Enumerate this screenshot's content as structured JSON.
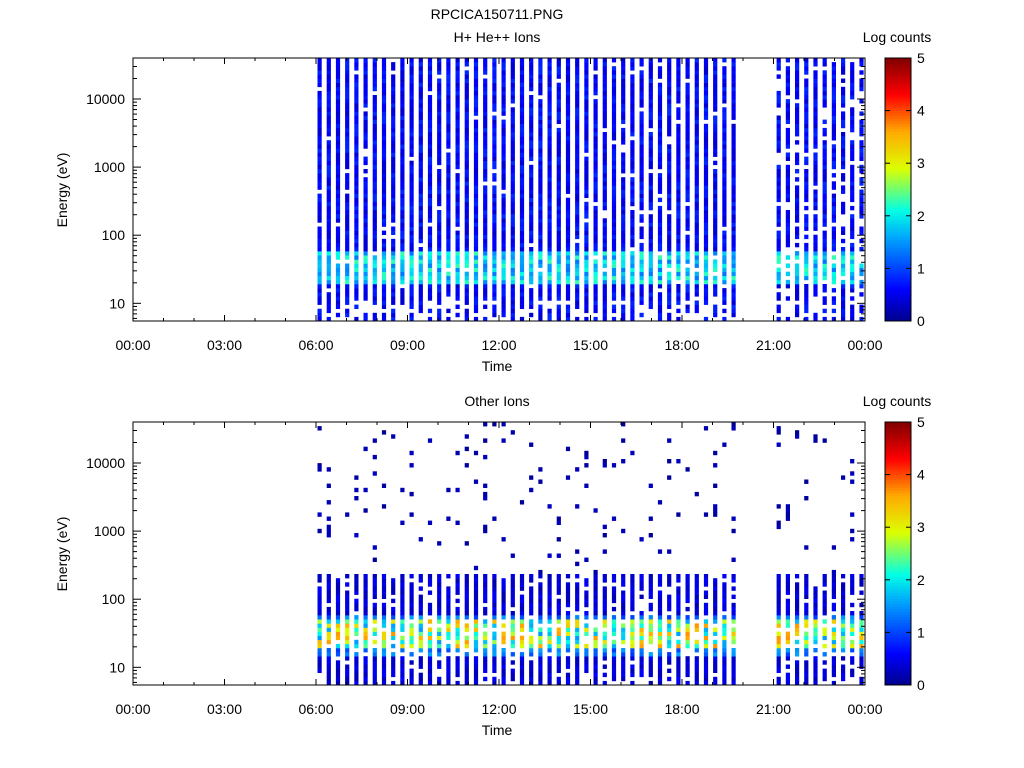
{
  "page_title": "RPCICA150711.PNG",
  "chart_data": [
    {
      "type": "heatmap",
      "title": "H+ He++ Ions",
      "xlabel": "Time",
      "ylabel": "Energy (eV)",
      "yscale": "log",
      "ylim": [
        5.5,
        40000
      ],
      "xlim": [
        "00:00",
        "24:00"
      ],
      "x_ticks": [
        "00:00",
        "03:00",
        "06:00",
        "09:00",
        "12:00",
        "15:00",
        "18:00",
        "21:00",
        "00:00"
      ],
      "y_ticks": [
        10,
        100,
        1000,
        10000
      ],
      "y_tick_labels": [
        "10",
        "100",
        "1000",
        "10000"
      ],
      "colorbar": {
        "label": "Log counts",
        "range": [
          0,
          5
        ],
        "ticks": [
          "0",
          "1",
          "2",
          "3",
          "4",
          "5"
        ]
      },
      "data_coverage_hours": [
        [
          6.05,
          19.85
        ],
        [
          21.1,
          23.9
        ]
      ],
      "description_values": {
        "background_log_counts": 0.6,
        "peak_band_energy_eV": [
          20,
          50
        ],
        "peak_band_log_counts": 2.0
      }
    },
    {
      "type": "heatmap",
      "title": "Other Ions",
      "xlabel": "Time",
      "ylabel": "Energy (eV)",
      "yscale": "log",
      "ylim": [
        5.5,
        40000
      ],
      "xlim": [
        "00:00",
        "24:00"
      ],
      "x_ticks": [
        "00:00",
        "03:00",
        "06:00",
        "09:00",
        "12:00",
        "15:00",
        "18:00",
        "21:00",
        "00:00"
      ],
      "y_ticks": [
        10,
        100,
        1000,
        10000
      ],
      "y_tick_labels": [
        "10",
        "100",
        "1000",
        "10000"
      ],
      "colorbar": {
        "label": "Log counts",
        "range": [
          0,
          5
        ],
        "ticks": [
          "0",
          "1",
          "2",
          "3",
          "4",
          "5"
        ]
      },
      "data_coverage_hours": [
        [
          6.05,
          19.85
        ],
        [
          21.1,
          23.9
        ]
      ],
      "description_values": {
        "background_log_counts": 0.1,
        "dense_region_max_energy_eV": 220,
        "peak_band_energy_eV": [
          20,
          50
        ],
        "peak_band_log_counts": 3.6
      }
    }
  ]
}
